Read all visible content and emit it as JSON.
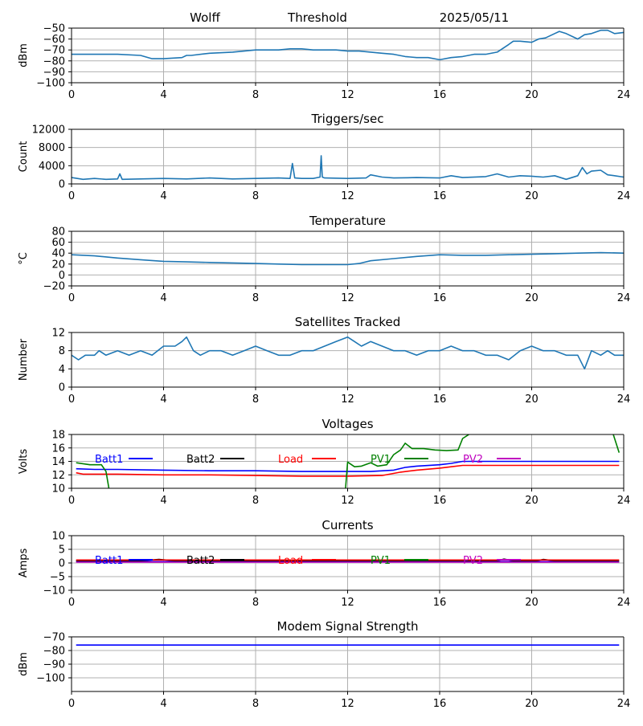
{
  "header": {
    "station": "Wolff",
    "mode": "Threshold",
    "date": "2025/05/11"
  },
  "colors": {
    "data": "#1f77b4",
    "grid": "#b0b0b0",
    "batt1": "#0000ff",
    "batt2": "#000000",
    "load": "#ff0000",
    "pv1": "#008000",
    "pv2": "#bf00bf"
  },
  "chart_data": [
    {
      "id": "threshold",
      "type": "line",
      "title": "",
      "ylabel": "dBm",
      "xlim": [
        0,
        24
      ],
      "ylim": [
        -100,
        -50
      ],
      "xticks": [
        0,
        4,
        8,
        12,
        16,
        20,
        24
      ],
      "yticks": [
        -100,
        -90,
        -80,
        -70,
        -60,
        -50
      ],
      "grid": true,
      "series": [
        {
          "color_key": "data",
          "x": [
            0,
            1,
            2,
            3,
            3.5,
            4,
            4.8,
            5,
            5.2,
            6,
            7,
            7.5,
            8,
            8.5,
            9,
            9.5,
            10,
            10.5,
            11,
            11.5,
            12,
            12.5,
            13,
            13.5,
            14,
            14.5,
            15,
            15.5,
            16,
            16.5,
            17,
            17.5,
            18,
            18.5,
            19,
            19.2,
            19.5,
            20,
            20.3,
            20.6,
            21,
            21.2,
            21.5,
            21.8,
            22,
            22.3,
            22.6,
            23,
            23.3,
            23.6,
            24
          ],
          "y": [
            -74,
            -74,
            -74,
            -75,
            -78,
            -78,
            -77,
            -75,
            -75,
            -73,
            -72,
            -71,
            -70,
            -70,
            -70,
            -69,
            -69,
            -70,
            -70,
            -70,
            -71,
            -71,
            -72,
            -73,
            -74,
            -76,
            -77,
            -77,
            -79,
            -77,
            -76,
            -74,
            -74,
            -72,
            -65,
            -62,
            -62,
            -63,
            -60,
            -59,
            -55,
            -53,
            -55,
            -58,
            -60,
            -56,
            -55,
            -52,
            -52,
            -55,
            -54
          ]
        }
      ]
    },
    {
      "id": "triggers",
      "type": "line",
      "title": "Triggers/sec",
      "ylabel": "Count",
      "xlim": [
        0,
        24
      ],
      "ylim": [
        0,
        12000
      ],
      "xticks": [
        0,
        4,
        8,
        12,
        16,
        20,
        24
      ],
      "yticks": [
        0,
        4000,
        8000,
        12000
      ],
      "grid": true,
      "series": [
        {
          "color_key": "data",
          "x": [
            0,
            0.5,
            1,
            1.5,
            2,
            2.1,
            2.2,
            3,
            4,
            5,
            6,
            7,
            8,
            9,
            9.5,
            9.6,
            9.7,
            10,
            10.5,
            10.8,
            10.85,
            10.9,
            11,
            12,
            12.8,
            13,
            13.5,
            14,
            15,
            16,
            16.5,
            17,
            18,
            18.5,
            19,
            19.5,
            20,
            20.5,
            21,
            21.5,
            22,
            22.2,
            22.4,
            22.6,
            23,
            23.3,
            23.6,
            24
          ],
          "y": [
            1400,
            1000,
            1200,
            1000,
            1100,
            2200,
            1000,
            1100,
            1200,
            1100,
            1300,
            1100,
            1200,
            1300,
            1200,
            4500,
            1300,
            1200,
            1200,
            1500,
            6200,
            1500,
            1300,
            1200,
            1300,
            2000,
            1500,
            1300,
            1400,
            1300,
            1800,
            1400,
            1600,
            2200,
            1500,
            1800,
            1700,
            1500,
            1800,
            1000,
            1800,
            3600,
            2200,
            2800,
            3000,
            2000,
            1800,
            1500
          ]
        }
      ]
    },
    {
      "id": "temperature",
      "type": "line",
      "title": "Temperature",
      "ylabel": "°C",
      "xlim": [
        0,
        24
      ],
      "ylim": [
        -20,
        80
      ],
      "xticks": [
        0,
        4,
        8,
        12,
        16,
        20,
        24
      ],
      "yticks": [
        -20,
        0,
        20,
        40,
        60,
        80
      ],
      "grid": true,
      "series": [
        {
          "color_key": "data",
          "x": [
            0,
            1,
            2,
            3,
            4,
            5,
            6,
            7,
            8,
            9,
            10,
            11,
            12,
            12.5,
            13,
            14,
            15,
            16,
            17,
            18,
            19,
            20,
            21,
            22,
            23,
            24
          ],
          "y": [
            37,
            35,
            31,
            28,
            25,
            24,
            23,
            22,
            21,
            20,
            19,
            19,
            19,
            21,
            26,
            30,
            34,
            37,
            36,
            36,
            37,
            38,
            39,
            40,
            41,
            40
          ]
        }
      ]
    },
    {
      "id": "satellites",
      "type": "line",
      "title": "Satellites Tracked",
      "ylabel": "Number",
      "xlim": [
        0,
        24
      ],
      "ylim": [
        0,
        12
      ],
      "xticks": [
        0,
        4,
        8,
        12,
        16,
        20,
        24
      ],
      "yticks": [
        0,
        4,
        8,
        12
      ],
      "grid": true,
      "series": [
        {
          "color_key": "data",
          "x": [
            0,
            0.3,
            0.6,
            1,
            1.2,
            1.5,
            2,
            2.5,
            3,
            3.5,
            4,
            4.5,
            4.8,
            5,
            5.3,
            5.6,
            6,
            6.5,
            7,
            7.5,
            8,
            8.5,
            9,
            9.5,
            10,
            10.5,
            11,
            11.5,
            12,
            12.3,
            12.6,
            13,
            13.5,
            14,
            14.5,
            15,
            15.5,
            16,
            16.5,
            17,
            17.5,
            18,
            18.5,
            19,
            19.5,
            20,
            20.5,
            21,
            21.5,
            22,
            22.3,
            22.6,
            23,
            23.3,
            23.6,
            24
          ],
          "y": [
            7,
            6,
            7,
            7,
            8,
            7,
            8,
            7,
            8,
            7,
            9,
            9,
            10,
            11,
            8,
            7,
            8,
            8,
            7,
            8,
            9,
            8,
            7,
            7,
            8,
            8,
            9,
            10,
            11,
            10,
            9,
            10,
            9,
            8,
            8,
            7,
            8,
            8,
            9,
            8,
            8,
            7,
            7,
            6,
            8,
            9,
            8,
            8,
            7,
            7,
            4,
            8,
            7,
            8,
            7,
            7
          ]
        }
      ]
    },
    {
      "id": "voltages",
      "type": "line",
      "title": "Voltages",
      "ylabel": "Volts",
      "xlim": [
        0,
        24
      ],
      "ylim": [
        10,
        18
      ],
      "xticks": [
        0,
        4,
        8,
        12,
        16,
        20,
        24
      ],
      "yticks": [
        10,
        12,
        14,
        16,
        18
      ],
      "grid": true,
      "legend": "inline-top",
      "series": [
        {
          "name": "Batt1",
          "color_key": "batt1",
          "x": [
            0.2,
            1,
            2,
            4,
            6,
            8,
            10,
            12,
            13,
            14,
            14.5,
            15,
            16,
            16.5,
            17,
            18,
            20,
            22,
            23.8
          ],
          "y": [
            12.9,
            12.8,
            12.8,
            12.7,
            12.6,
            12.6,
            12.5,
            12.5,
            12.5,
            12.7,
            13.1,
            13.3,
            13.5,
            13.7,
            14.0,
            14.0,
            14.0,
            14.0,
            14.0
          ]
        },
        {
          "name": "Batt2",
          "color_key": "batt2",
          "x": [],
          "y": []
        },
        {
          "name": "Load",
          "color_key": "load",
          "x": [
            0.2,
            0.5,
            1,
            2,
            4,
            6,
            8,
            10,
            12,
            13.5,
            14.3,
            15,
            16,
            16.5,
            17,
            18,
            20,
            22,
            23.8
          ],
          "y": [
            12.3,
            12.1,
            12.1,
            12.1,
            12.0,
            12.0,
            11.9,
            11.8,
            11.8,
            11.9,
            12.4,
            12.7,
            13.0,
            13.2,
            13.4,
            13.4,
            13.4,
            13.4,
            13.4
          ]
        },
        {
          "name": "PV1",
          "color_key": "pv1",
          "x": [
            0.2,
            0.8,
            1.3,
            1.5,
            1.65,
            11.9,
            12.0,
            12.3,
            12.6,
            13.0,
            13.3,
            13.7,
            14.0,
            14.3,
            14.5,
            14.8,
            15.3,
            15.8,
            16.3,
            16.8,
            17.0,
            17.5,
            23.5,
            23.8
          ],
          "y": [
            13.8,
            13.5,
            13.5,
            12.5,
            9.5,
            9.5,
            13.9,
            13.2,
            13.3,
            13.8,
            13.3,
            13.5,
            15.0,
            15.7,
            16.7,
            15.9,
            15.9,
            15.7,
            15.6,
            15.7,
            17.4,
            18.5,
            18.5,
            15.3
          ]
        },
        {
          "name": "PV2",
          "color_key": "pv2",
          "x": [],
          "y": []
        }
      ]
    },
    {
      "id": "currents",
      "type": "line",
      "title": "Currents",
      "ylabel": "Amps",
      "xlim": [
        0,
        24
      ],
      "ylim": [
        -10,
        10
      ],
      "xticks": [
        0,
        4,
        8,
        12,
        16,
        20,
        24
      ],
      "yticks": [
        -10,
        -5,
        0,
        5,
        10
      ],
      "grid": true,
      "legend": "inline-top",
      "series": [
        {
          "name": "Batt1",
          "color_key": "batt1",
          "x": [
            0.2,
            23.8
          ],
          "y": [
            0.5,
            0.5
          ]
        },
        {
          "name": "Batt2",
          "color_key": "batt2",
          "x": [
            0.2,
            3,
            3.8,
            4.5,
            8,
            12,
            16,
            18.5,
            18.8,
            19.2,
            20.2,
            20.5,
            21,
            23.8
          ],
          "y": [
            0.8,
            0.8,
            1.3,
            0.8,
            0.8,
            0.8,
            0.8,
            0.8,
            1.4,
            0.8,
            0.8,
            1.3,
            0.8,
            0.8
          ]
        },
        {
          "name": "Load",
          "color_key": "load",
          "x": [
            0.2,
            23.8
          ],
          "y": [
            1.1,
            1.1
          ]
        },
        {
          "name": "PV1",
          "color_key": "pv1",
          "x": [],
          "y": []
        },
        {
          "name": "PV2",
          "color_key": "pv2",
          "x": [
            0.2,
            23.8
          ],
          "y": [
            0.3,
            0.3
          ]
        }
      ]
    },
    {
      "id": "modem",
      "type": "line",
      "title": "Modem Signal Strength",
      "ylabel": "dBm",
      "xlim": [
        0,
        24
      ],
      "ylim": [
        -110,
        -70
      ],
      "xticks": [
        0,
        4,
        8,
        12,
        16,
        20,
        24
      ],
      "yticks": [
        -100,
        -90,
        -80,
        -70
      ],
      "grid": true,
      "series": [
        {
          "color_key": "batt1",
          "x": [
            0.2,
            23.8
          ],
          "y": [
            -76,
            -76
          ]
        }
      ]
    }
  ]
}
